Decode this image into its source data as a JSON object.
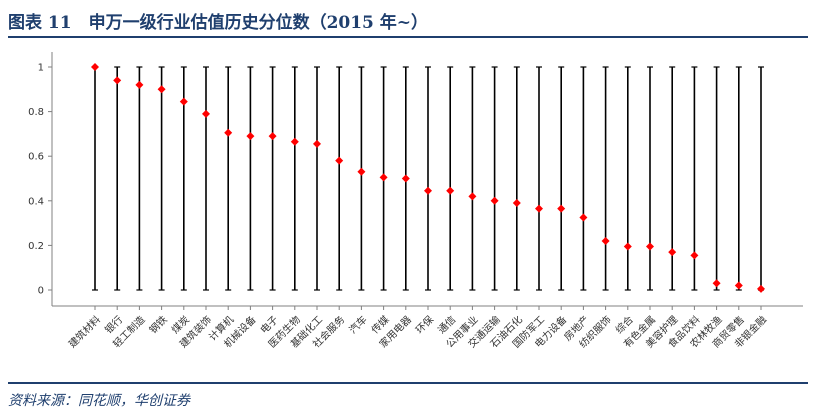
{
  "header": {
    "title": "图表 11　申万一级行业估值历史分位数（2015 年~）"
  },
  "footer": {
    "source": "资料来源：同花顺，华创证券"
  },
  "colors": {
    "accent": "#1f3f6e",
    "marker": "#ff0000",
    "stem": "#000000"
  },
  "chart_data": {
    "type": "scatter",
    "title": "申万一级行业估值历史分位数（2015 年~）",
    "xlabel": "",
    "ylabel": "",
    "ylim": [
      0,
      1
    ],
    "yticks": [
      0,
      0.2,
      0.4,
      0.6,
      0.8,
      1
    ],
    "ytick_labels": [
      "0",
      "0.2",
      "0.4",
      "0.6",
      "0.8",
      "1"
    ],
    "grid": false,
    "range_lines": {
      "low": 0,
      "high": 1
    },
    "categories": [
      "建筑材料",
      "银行",
      "轻工制造",
      "钢铁",
      "煤炭",
      "建筑装饰",
      "计算机",
      "机械设备",
      "电子",
      "医药生物",
      "基础化工",
      "社会服务",
      "汽车",
      "传媒",
      "家用电器",
      "环保",
      "通信",
      "公用事业",
      "交通运输",
      "石油石化",
      "国防军工",
      "电力设备",
      "房地产",
      "纺织服饰",
      "综合",
      "有色金属",
      "美容护理",
      "食品饮料",
      "农林牧渔",
      "商贸零售",
      "非银金融"
    ],
    "values": [
      1.0,
      0.94,
      0.92,
      0.9,
      0.845,
      0.79,
      0.705,
      0.69,
      0.69,
      0.665,
      0.655,
      0.58,
      0.53,
      0.505,
      0.5,
      0.445,
      0.445,
      0.42,
      0.4,
      0.39,
      0.365,
      0.365,
      0.325,
      0.22,
      0.195,
      0.195,
      0.17,
      0.155,
      0.03,
      0.02,
      0.005
    ]
  }
}
